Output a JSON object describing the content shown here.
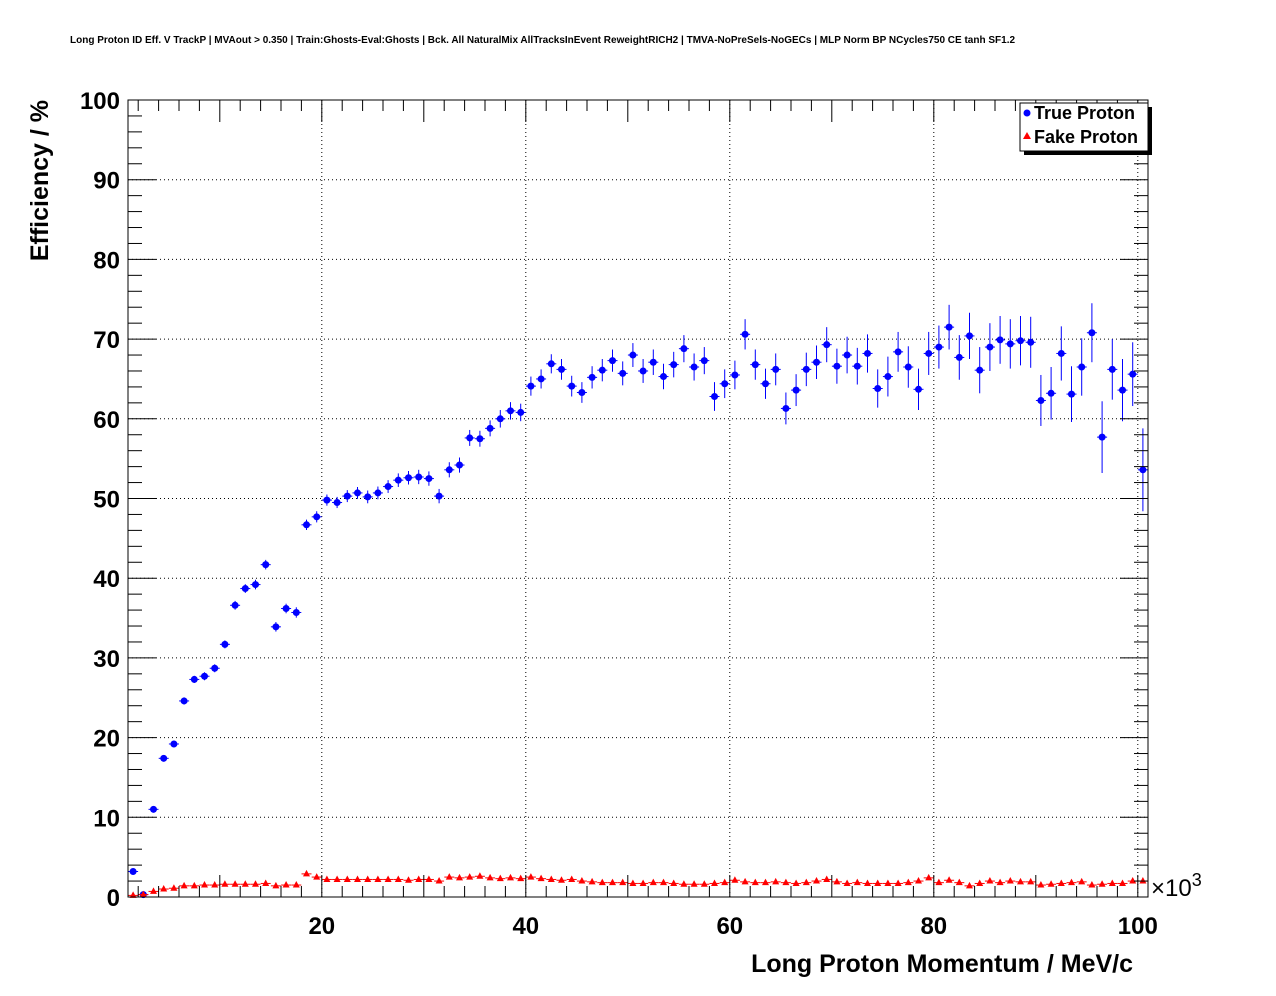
{
  "chart_data": {
    "type": "scatter",
    "title": "Long Proton ID Eff. V TrackP | MVAout > 0.350 | Train:Ghosts-Eval:Ghosts | Bck. All NaturalMix AllTracksInEvent ReweightRICH2 | TMVA-NoPreSels-NoGECs | MLP Norm BP NCycles750 CE tanh SF1.2",
    "xlabel": "Long Proton Momentum / MeV/c",
    "ylabel": "Efficiency / %",
    "x_multiplier": "×10",
    "x_multiplier_exp": "3",
    "xlim": [
      1,
      101
    ],
    "ylim": [
      0,
      100
    ],
    "x_ticks": [
      20,
      40,
      60,
      80,
      100
    ],
    "x_tick_labels": [
      "20",
      "40",
      "60",
      "80",
      "100"
    ],
    "y_ticks": [
      0,
      10,
      20,
      30,
      40,
      50,
      60,
      70,
      80,
      90,
      100
    ],
    "y_tick_labels": [
      "0",
      "10",
      "20",
      "30",
      "40",
      "50",
      "60",
      "70",
      "80",
      "90",
      "100"
    ],
    "grid": true,
    "legend_position": "top-right",
    "legend": [
      "True Proton",
      "Fake Proton"
    ],
    "colors": {
      "true": "#0000ff",
      "fake": "#ff0000"
    },
    "x": [
      1.5,
      2.5,
      3.5,
      4.5,
      5.5,
      6.5,
      7.5,
      8.5,
      9.5,
      10.5,
      11.5,
      12.5,
      13.5,
      14.5,
      15.5,
      16.5,
      17.5,
      18.5,
      19.5,
      20.5,
      21.5,
      22.5,
      23.5,
      24.5,
      25.5,
      26.5,
      27.5,
      28.5,
      29.5,
      30.5,
      31.5,
      32.5,
      33.5,
      34.5,
      35.5,
      36.5,
      37.5,
      38.5,
      39.5,
      40.5,
      41.5,
      42.5,
      43.5,
      44.5,
      45.5,
      46.5,
      47.5,
      48.5,
      49.5,
      50.5,
      51.5,
      52.5,
      53.5,
      54.5,
      55.5,
      56.5,
      57.5,
      58.5,
      59.5,
      60.5,
      61.5,
      62.5,
      63.5,
      64.5,
      65.5,
      66.5,
      67.5,
      68.5,
      69.5,
      70.5,
      71.5,
      72.5,
      73.5,
      74.5,
      75.5,
      76.5,
      77.5,
      78.5,
      79.5,
      80.5,
      81.5,
      82.5,
      83.5,
      84.5,
      85.5,
      86.5,
      87.5,
      88.5,
      89.5,
      90.5,
      91.5,
      92.5,
      93.5,
      94.5,
      95.5,
      96.5,
      97.5,
      98.5,
      99.5,
      100.5
    ],
    "series": [
      {
        "name": "True Proton",
        "marker": "circle",
        "values": [
          3.2,
          0.3,
          11.0,
          17.4,
          19.2,
          24.6,
          27.3,
          27.7,
          28.7,
          31.7,
          36.6,
          38.7,
          39.2,
          41.7,
          33.9,
          36.2,
          35.7,
          46.7,
          47.7,
          49.8,
          49.5,
          50.3,
          50.7,
          50.2,
          50.7,
          51.5,
          52.3,
          52.6,
          52.7,
          52.5,
          50.3,
          53.6,
          54.2,
          57.6,
          57.5,
          58.8,
          60.0,
          61.0,
          60.8,
          64.1,
          65.0,
          66.9,
          66.2,
          64.1,
          63.3,
          65.2,
          66.1,
          67.3,
          65.7,
          68.0,
          66.0,
          67.1,
          65.3,
          66.8,
          68.8,
          66.5,
          67.3,
          62.8,
          64.4,
          65.5,
          70.6,
          66.8,
          64.4,
          66.2,
          61.3,
          63.6,
          66.2,
          67.1,
          69.3,
          66.6,
          68.0,
          66.6,
          68.2,
          63.8,
          65.3,
          68.4,
          66.5,
          63.7,
          68.2,
          69.0,
          71.5,
          67.7,
          70.4,
          66.1,
          69.0,
          69.9,
          69.4,
          69.8,
          69.6,
          62.3,
          63.2,
          68.2,
          63.1,
          66.5,
          70.8,
          57.7,
          66.2,
          63.6,
          65.6,
          53.6
        ],
        "errors": [
          0.3,
          0.2,
          0.3,
          0.35,
          0.4,
          0.45,
          0.45,
          0.5,
          0.5,
          0.5,
          0.55,
          0.55,
          0.6,
          0.6,
          0.6,
          0.6,
          0.65,
          0.65,
          0.7,
          0.7,
          0.7,
          0.75,
          0.75,
          0.8,
          0.8,
          0.8,
          0.85,
          0.85,
          0.9,
          0.9,
          0.9,
          0.95,
          0.95,
          1.0,
          1.0,
          1.0,
          1.1,
          1.1,
          1.1,
          1.2,
          1.2,
          1.2,
          1.3,
          1.3,
          1.3,
          1.4,
          1.4,
          1.4,
          1.5,
          1.5,
          1.5,
          1.6,
          1.6,
          1.6,
          1.7,
          1.7,
          1.7,
          1.8,
          1.8,
          1.8,
          1.9,
          1.9,
          1.9,
          2.0,
          2.0,
          2.0,
          2.1,
          2.1,
          2.2,
          2.2,
          2.3,
          2.3,
          2.4,
          2.4,
          2.5,
          2.5,
          2.6,
          2.6,
          2.7,
          2.7,
          2.8,
          2.8,
          2.9,
          2.9,
          3.0,
          3.0,
          3.1,
          3.1,
          3.2,
          3.2,
          3.3,
          3.4,
          3.5,
          3.6,
          3.7,
          4.5,
          3.8,
          3.9,
          4.0,
          5.2
        ]
      },
      {
        "name": "Fake Proton",
        "marker": "triangle",
        "values": [
          0.2,
          0.3,
          0.7,
          1.0,
          1.1,
          1.4,
          1.4,
          1.5,
          1.5,
          1.6,
          1.6,
          1.6,
          1.6,
          1.7,
          1.4,
          1.5,
          1.5,
          2.9,
          2.5,
          2.2,
          2.2,
          2.2,
          2.2,
          2.2,
          2.2,
          2.2,
          2.2,
          2.1,
          2.2,
          2.2,
          2.0,
          2.5,
          2.4,
          2.5,
          2.6,
          2.4,
          2.3,
          2.4,
          2.3,
          2.5,
          2.3,
          2.2,
          2.1,
          2.2,
          2.0,
          1.9,
          1.8,
          1.8,
          1.8,
          1.7,
          1.7,
          1.8,
          1.8,
          1.7,
          1.6,
          1.6,
          1.6,
          1.7,
          1.8,
          2.1,
          1.9,
          1.8,
          1.8,
          1.9,
          1.8,
          1.7,
          1.8,
          2.0,
          2.2,
          1.9,
          1.7,
          1.8,
          1.7,
          1.7,
          1.7,
          1.7,
          1.8,
          2.0,
          2.4,
          1.8,
          2.1,
          1.8,
          1.4,
          1.7,
          2.0,
          1.8,
          2.0,
          1.9,
          1.9,
          1.5,
          1.6,
          1.7,
          1.8,
          1.9,
          1.5,
          1.6,
          1.7,
          1.7,
          2.0,
          2.0
        ]
      }
    ]
  }
}
